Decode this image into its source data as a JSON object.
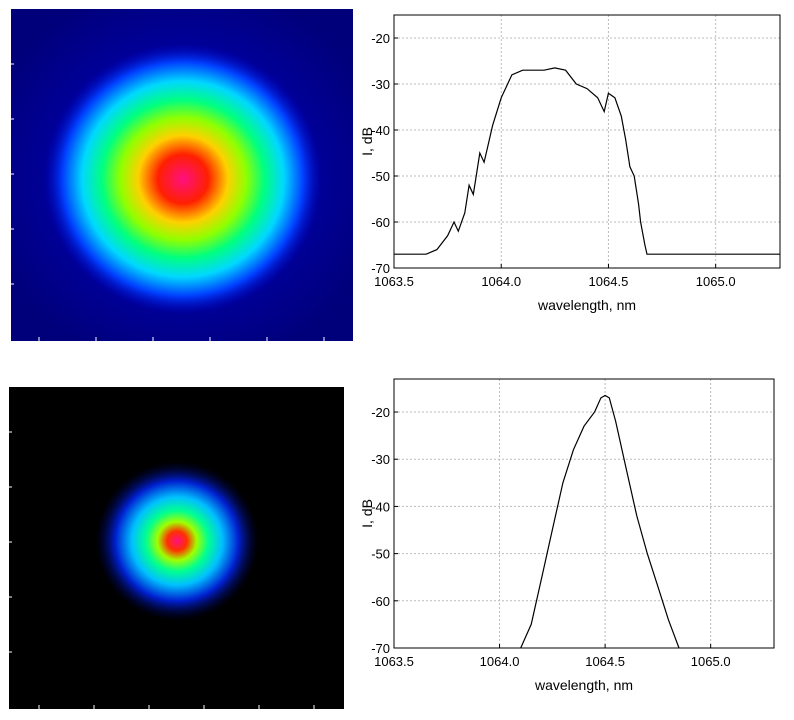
{
  "beam_images": [
    {
      "kind": "wide-beam-profile",
      "background": "#00008a"
    },
    {
      "kind": "narrow-beam-profile",
      "background": "#000000"
    }
  ],
  "colormap": [
    "#000060",
    "#0000c8",
    "#0050ff",
    "#00e0ff",
    "#00ff60",
    "#c0ff00",
    "#ffd000",
    "#ff2000",
    "#ff1080"
  ],
  "chart_data": [
    {
      "type": "line",
      "title": "",
      "xlabel": "wavelength, nm",
      "ylabel": "I, dB",
      "xlim": [
        1063.5,
        1065.3
      ],
      "ylim": [
        -70,
        -15
      ],
      "xticks": [
        1063.5,
        1064.0,
        1064.5,
        1065.0
      ],
      "xtick_labels": [
        "1063.5",
        "1064.0",
        "1064.5",
        "1065.0"
      ],
      "yticks": [
        -70,
        -60,
        -50,
        -40,
        -30,
        -20
      ],
      "ytick_labels": [
        "-70",
        "-60",
        "-50",
        "-40",
        "-30",
        "-20"
      ],
      "grid": true,
      "series": [
        {
          "x": [
            1063.5,
            1063.6,
            1063.65,
            1063.7,
            1063.75,
            1063.78,
            1063.8,
            1063.83,
            1063.85,
            1063.87,
            1063.88,
            1063.9,
            1063.92,
            1063.94,
            1063.96,
            1064.0,
            1064.05,
            1064.1,
            1064.15,
            1064.2,
            1064.25,
            1064.3,
            1064.35,
            1064.4,
            1064.45,
            1064.48,
            1064.5,
            1064.53,
            1064.56,
            1064.58,
            1064.6,
            1064.62,
            1064.64,
            1064.65,
            1064.67,
            1064.68,
            1064.7,
            1064.8,
            1065.0,
            1065.3
          ],
          "y": [
            -67,
            -67,
            -67,
            -66,
            -63,
            -60,
            -62,
            -58,
            -52,
            -54,
            -51,
            -45,
            -47,
            -43,
            -39,
            -33,
            -28,
            -27,
            -27,
            -27,
            -26.5,
            -27,
            -30,
            -31,
            -33,
            -36,
            -32,
            -33,
            -37,
            -42,
            -48,
            -50,
            -56,
            -60,
            -65,
            -67,
            -67,
            -67,
            -67,
            -67
          ]
        }
      ]
    },
    {
      "type": "line",
      "title": "",
      "xlabel": "wavelength, nm",
      "ylabel": "I, dB",
      "xlim": [
        1063.5,
        1065.3
      ],
      "ylim": [
        -70,
        -13
      ],
      "xticks": [
        1063.5,
        1064.0,
        1064.5,
        1065.0
      ],
      "xtick_labels": [
        "1063.5",
        "1064.0",
        "1064.5",
        "1065.0"
      ],
      "yticks": [
        -70,
        -60,
        -50,
        -40,
        -30,
        -20
      ],
      "ytick_labels": [
        "-70",
        "-60",
        "-50",
        "-40",
        "-30",
        "-20"
      ],
      "grid": true,
      "series": [
        {
          "x": [
            1064.1,
            1064.15,
            1064.2,
            1064.25,
            1064.3,
            1064.35,
            1064.4,
            1064.45,
            1064.48,
            1064.5,
            1064.52,
            1064.55,
            1064.6,
            1064.65,
            1064.7,
            1064.75,
            1064.8,
            1064.85
          ],
          "y": [
            -70,
            -65,
            -55,
            -45,
            -35,
            -28,
            -23,
            -20,
            -17,
            -16.5,
            -17,
            -22,
            -32,
            -42,
            -50,
            -57,
            -64,
            -70
          ]
        }
      ]
    }
  ]
}
